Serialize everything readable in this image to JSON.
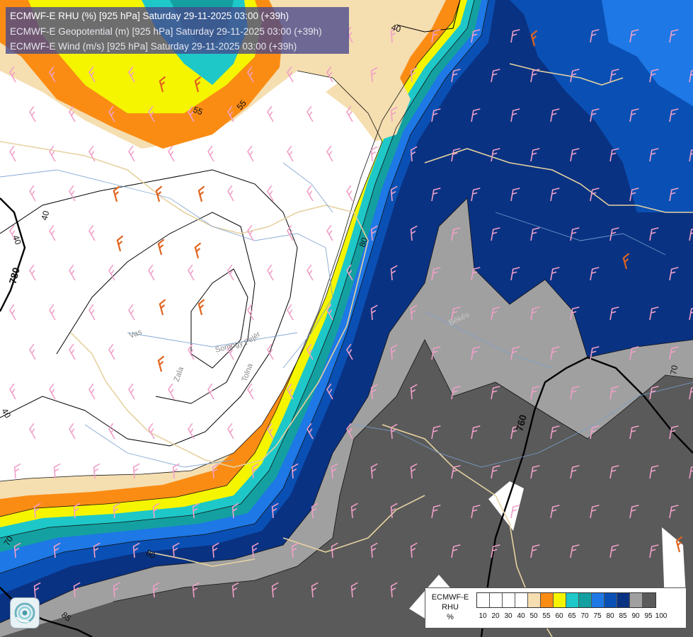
{
  "header": {
    "line1": "ECMWF-E RHU (%) [925 hPa] Saturday 29-11-2025 03:00 (+39h)",
    "line2": "ECMWF-E Geopotential (m) [925 hPa] Saturday 29-11-2025 03:00 (+39h)",
    "line3": "ECMWF-E Wind (m/s) [925 hPa] Saturday 29-11-2025 03:00 (+39h)"
  },
  "legend": {
    "line1": "ECMWF-E",
    "line2": "RHU",
    "line3": "%",
    "classes": [
      {
        "color": "#ffffff"
      },
      {
        "color": "#ffffff"
      },
      {
        "color": "#ffffff"
      },
      {
        "color": "#ffffff"
      },
      {
        "color": "#f5deb0"
      },
      {
        "color": "#fa8c14"
      },
      {
        "color": "#f5f500"
      },
      {
        "color": "#1ec8c8"
      },
      {
        "color": "#14a0a0"
      },
      {
        "color": "#1e78e6"
      },
      {
        "color": "#0a50b4"
      },
      {
        "color": "#0a3282"
      },
      {
        "color": "#a0a0a0"
      },
      {
        "color": "#5a5a5a"
      }
    ],
    "ticks": [
      "10",
      "20",
      "30",
      "40",
      "50",
      "55",
      "60",
      "65",
      "70",
      "75",
      "80",
      "85",
      "90",
      "95",
      "100"
    ]
  },
  "contour_labels": [
    "40",
    "55",
    "55",
    "40",
    "40",
    "780",
    "40",
    "760",
    "70",
    "80",
    "85",
    "80",
    "70"
  ],
  "region_labels": [
    "Vas",
    "Somogy",
    "Fejér",
    "Tolna",
    "Zala",
    "Békés"
  ],
  "icons": {
    "logo": "ecmwf-swirl-logo-icon"
  },
  "colors": {
    "title_bg": "#46468c",
    "wind_barb_orange": "#e0641e",
    "wind_barb_pink": "#f0a0c8",
    "border_line": "#e6d2a0",
    "river_line": "#7aa0d0"
  }
}
